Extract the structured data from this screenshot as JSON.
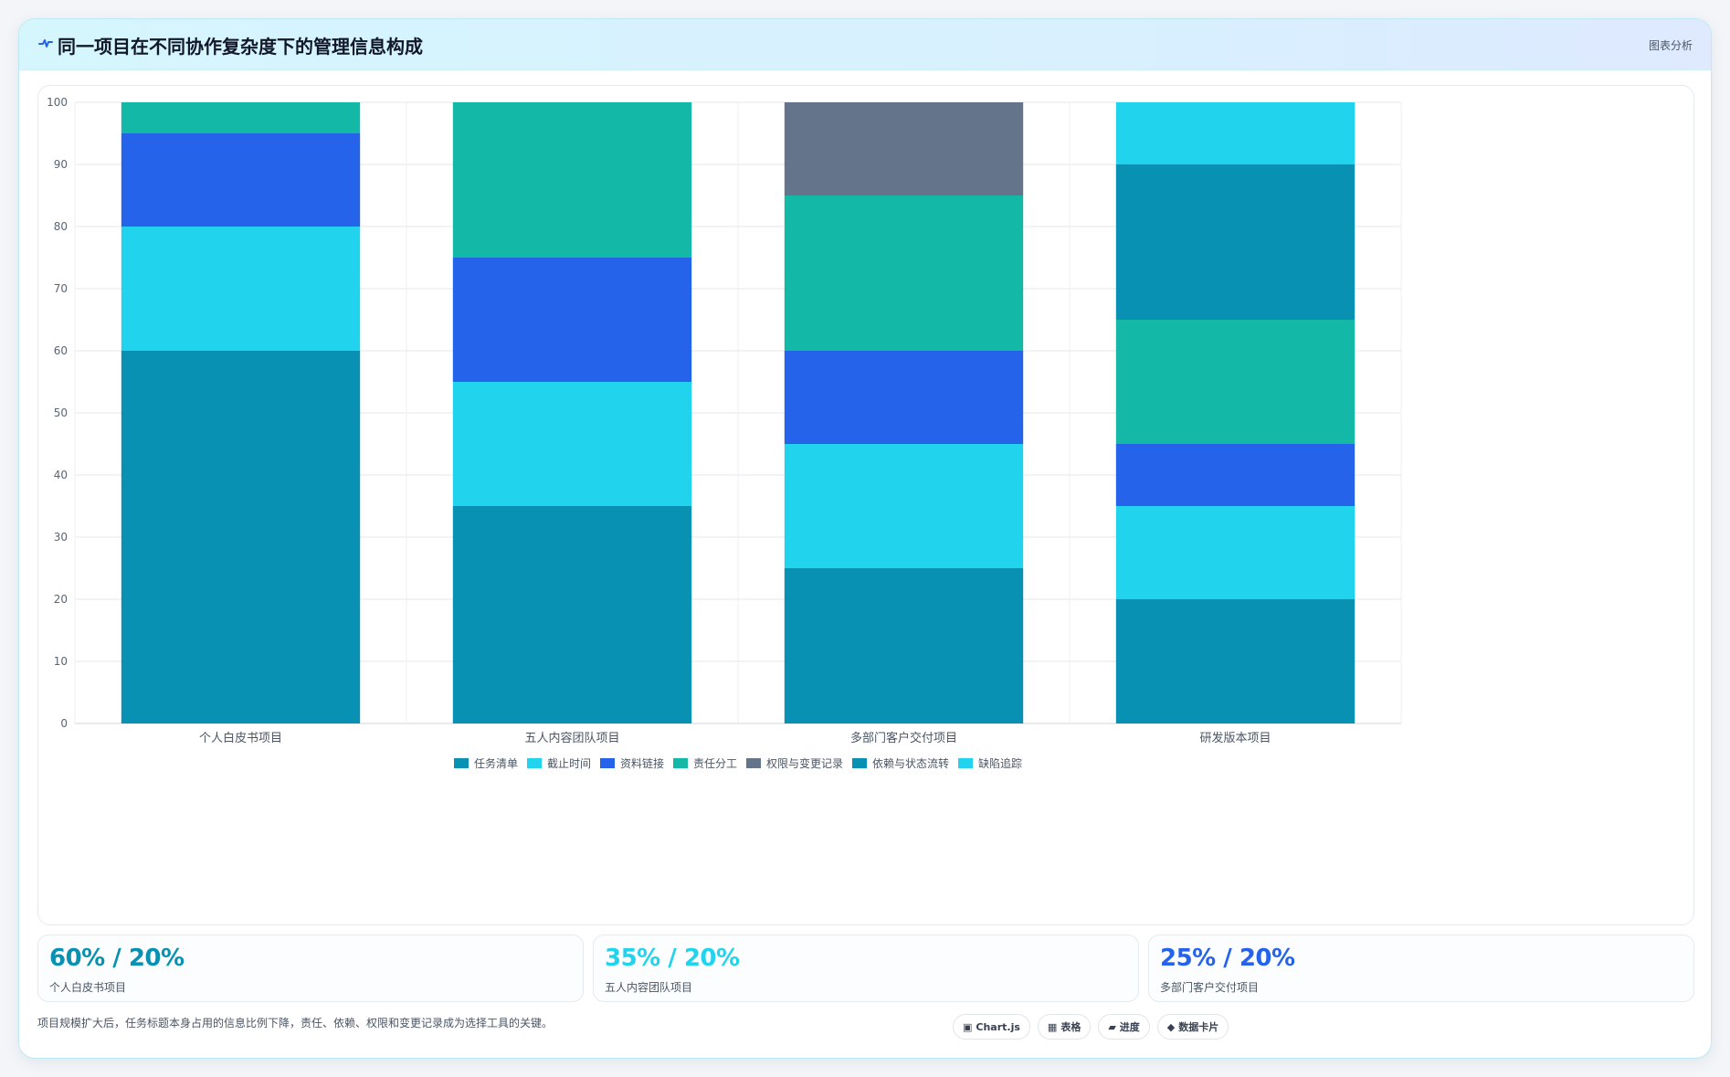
{
  "header": {
    "title": "同一项目在不同协作复杂度下的管理信息构成",
    "icon": "pulse-icon",
    "badge": "图表分析"
  },
  "chart_data": {
    "type": "bar",
    "stacked": true,
    "categories": [
      "个人白皮书项目",
      "五人内容团队项目",
      "多部门客户交付项目",
      "研发版本项目"
    ],
    "series": [
      {
        "name": "任务清单",
        "color": "#0891b2",
        "values": [
          60,
          35,
          25,
          20
        ]
      },
      {
        "name": "截止时间",
        "color": "#22d3ee",
        "values": [
          20,
          20,
          20,
          15
        ]
      },
      {
        "name": "资料链接",
        "color": "#2563eb",
        "values": [
          15,
          20,
          15,
          10
        ]
      },
      {
        "name": "责任分工",
        "color": "#14b8a6",
        "values": [
          5,
          25,
          25,
          20
        ]
      },
      {
        "name": "权限与变更记录",
        "color": "#64748b",
        "values": [
          0,
          0,
          15,
          0
        ]
      },
      {
        "name": "依赖与状态流转",
        "color": "#0891b2",
        "values": [
          0,
          0,
          0,
          25
        ]
      },
      {
        "name": "缺陷追踪",
        "color": "#22d3ee",
        "values": [
          0,
          0,
          0,
          10
        ]
      }
    ],
    "yticks": [
      0,
      10,
      20,
      30,
      40,
      50,
      60,
      70,
      80,
      90,
      100
    ],
    "ylim": [
      0,
      100
    ],
    "grid": true,
    "legend": "bottom-center"
  },
  "stats": [
    {
      "value": "60% / 20%",
      "label": "个人白皮书项目",
      "color": "#0891b2"
    },
    {
      "value": "35% / 20%",
      "label": "五人内容团队项目",
      "color": "#22d3ee"
    },
    {
      "value": "25% / 20%",
      "label": "多部门客户交付项目",
      "color": "#2563eb"
    }
  ],
  "footer": {
    "note": "项目规模扩大后，任务标题本身占用的信息比例下降，责任、依赖、权限和变更记录成为选择工具的关键。"
  },
  "chips": [
    {
      "icon": "▣",
      "label": "Chart.js"
    },
    {
      "icon": "▦",
      "label": "表格"
    },
    {
      "icon": "▰",
      "label": "进度"
    },
    {
      "icon": "◆",
      "label": "数据卡片"
    }
  ]
}
